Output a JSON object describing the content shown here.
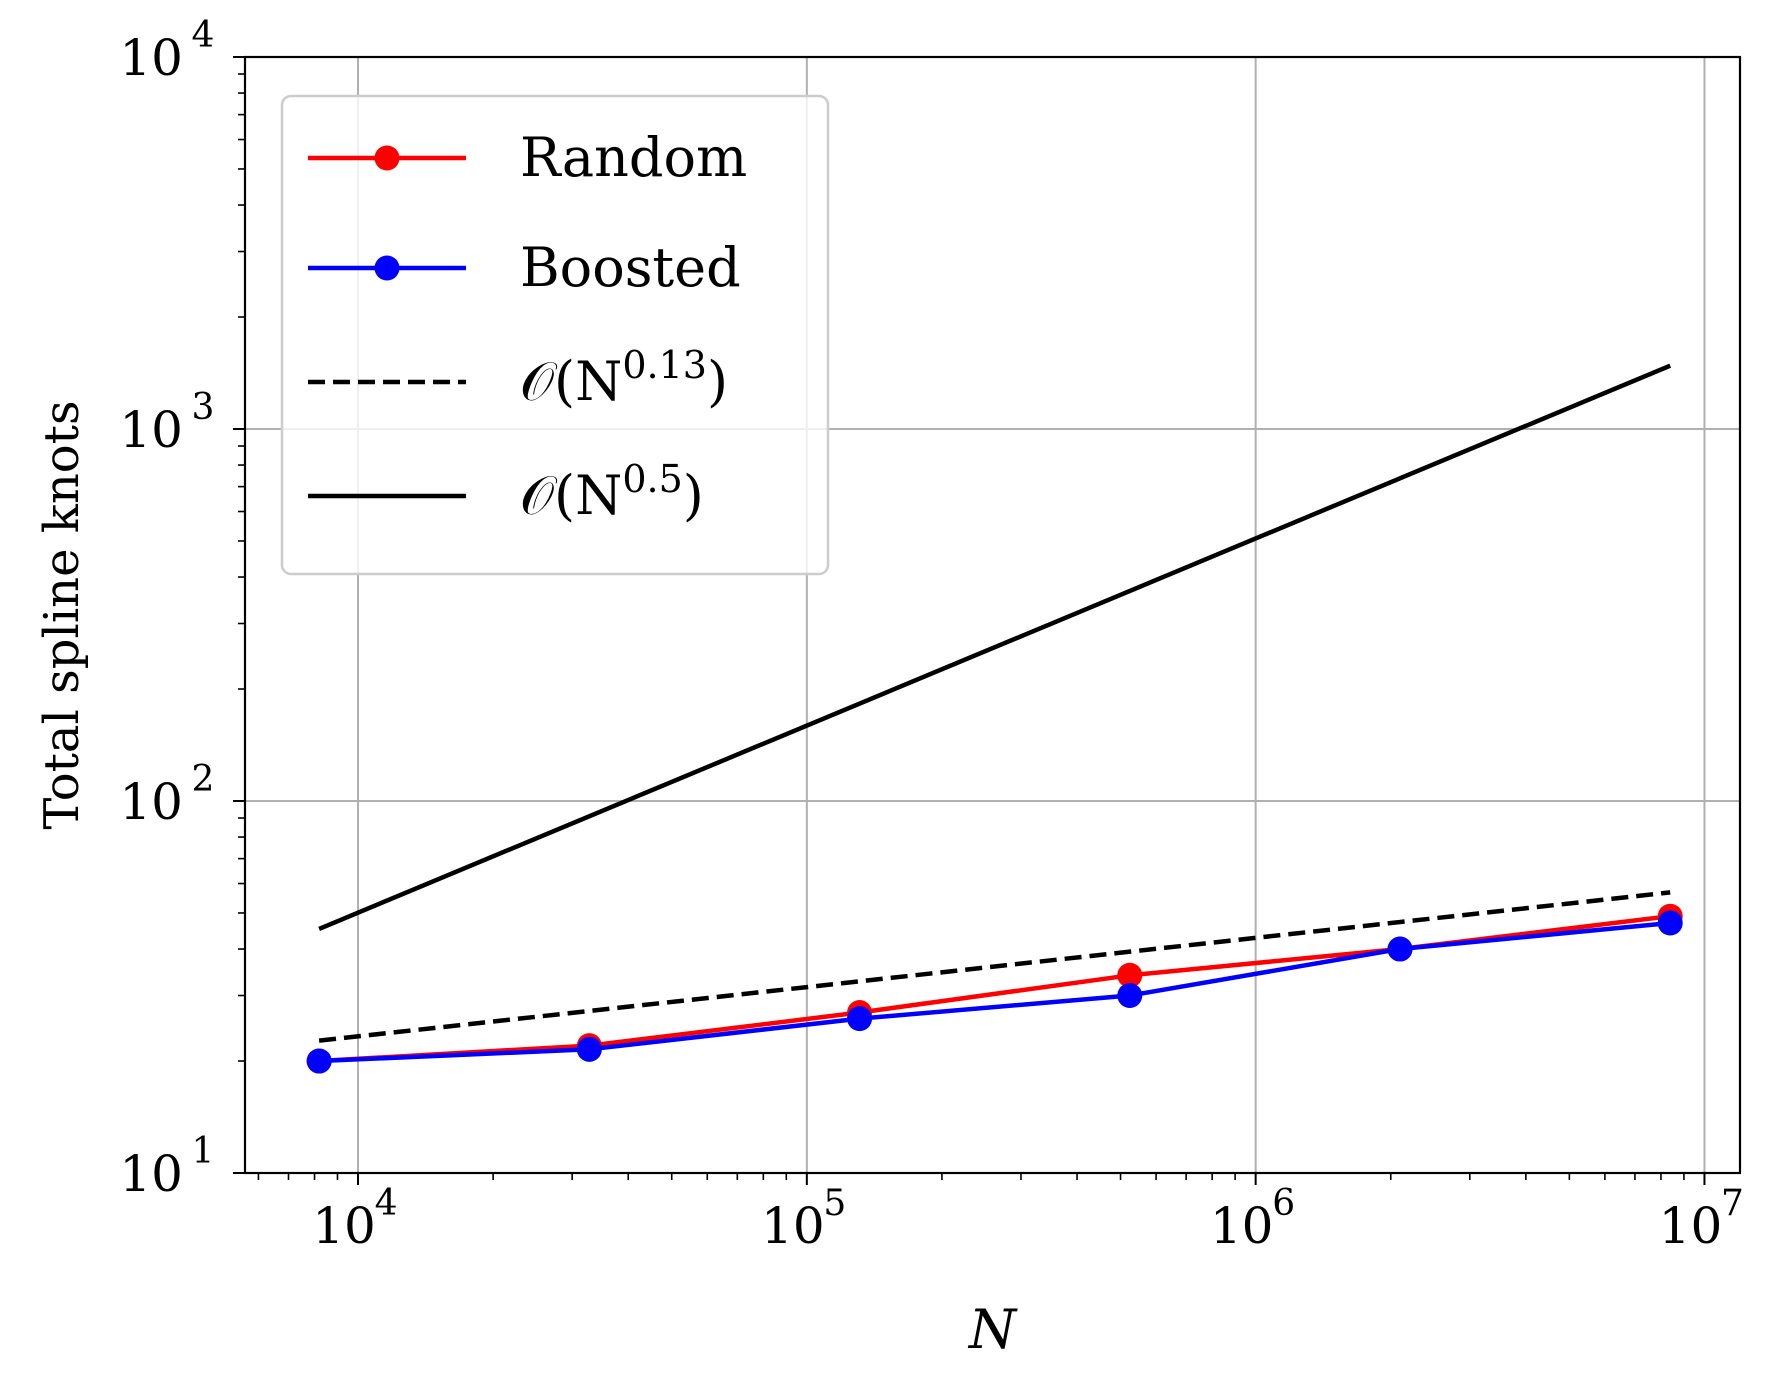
{
  "chart_data": {
    "type": "line",
    "xscale": "log",
    "yscale": "log",
    "xlim": [
      5600,
      12000000
    ],
    "ylim": [
      10,
      10000
    ],
    "xlabel": "N",
    "ylabel": "Total spline knots",
    "grid": true,
    "legend_position": "top-left",
    "x_ticks": [
      {
        "value": 10000,
        "base": "10",
        "exp": "4"
      },
      {
        "value": 100000,
        "base": "10",
        "exp": "5"
      },
      {
        "value": 1000000,
        "base": "10",
        "exp": "6"
      },
      {
        "value": 10000000,
        "base": "10",
        "exp": "7"
      }
    ],
    "y_ticks": [
      {
        "value": 10,
        "base": "10",
        "exp": "1"
      },
      {
        "value": 100,
        "base": "10",
        "exp": "2"
      },
      {
        "value": 1000,
        "base": "10",
        "exp": "3"
      },
      {
        "value": 10000,
        "base": "10",
        "exp": "4"
      }
    ],
    "series": [
      {
        "name": "Random",
        "legend_prefix": "Random",
        "legend_sup": "",
        "legend_suffix": "",
        "style": "line-marker",
        "color": "#ff0000",
        "x": [
          8192,
          32768,
          131072,
          524288,
          2097152,
          8388608
        ],
        "y": [
          20,
          22,
          27,
          34,
          40,
          49
        ]
      },
      {
        "name": "Boosted",
        "legend_prefix": "Boosted",
        "legend_sup": "",
        "legend_suffix": "",
        "style": "line-marker",
        "color": "#0000ff",
        "x": [
          8192,
          32768,
          131072,
          524288,
          2097152,
          8388608
        ],
        "y": [
          20,
          21.5,
          26,
          30,
          40,
          47
        ]
      },
      {
        "name": "O(N^0.13)",
        "legend_prefix": "𝒪(N",
        "legend_sup": "0.13",
        "legend_suffix": ")",
        "style": "dashed",
        "color": "#000000",
        "x": [
          8192,
          8388608
        ],
        "y": [
          22.7,
          56.8
        ]
      },
      {
        "name": "O(N^0.5)",
        "legend_prefix": "𝒪(N",
        "legend_sup": "0.5",
        "legend_suffix": ")",
        "style": "solid",
        "color": "#000000",
        "x": [
          8192,
          8388608
        ],
        "y": [
          45.3,
          1480
        ]
      }
    ]
  }
}
